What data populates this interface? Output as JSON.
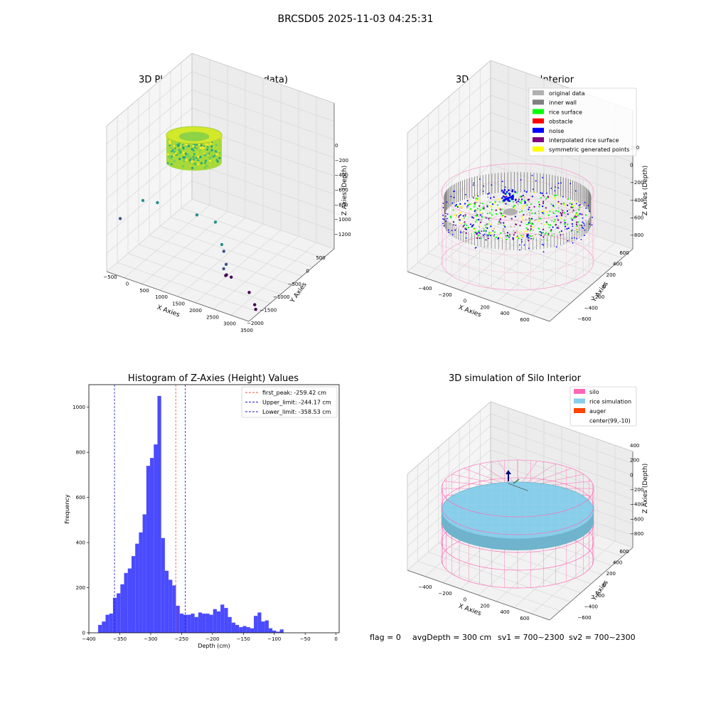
{
  "suptitle": "BRCSD05 2025-11-03 04:25:31",
  "footer": {
    "flag": "flag = 0",
    "avg_depth": "avgDepth = 300 cm",
    "sv1": "sv1 = 700~2300",
    "sv2": "sv2 = 700~2300"
  },
  "colors": {
    "hist_bar": "#4a4aff",
    "first_peak_line": "#e8503c",
    "limit_line": "#1a1ad6",
    "silo": "#ff69b4",
    "rice_simulation": "#87ceeb",
    "auger": "#ff4500",
    "original_data": "#b0b0b0",
    "inner_wall": "#808080",
    "rice_surface": "#00ff00",
    "obstacle": "#ff0000",
    "noise": "#0000ff",
    "interpolated_rice_surface": "#800080",
    "symmetric_generated_points": "#ffff00"
  },
  "chart_data": [
    {
      "type": "scatter",
      "projection": "3d",
      "title": "3D Plot of Silo Interior(row data)",
      "xlabel": "X Axies",
      "ylabel": "Y Axies",
      "zlabel": "Z Axies (Depth)",
      "x_ticks": [
        "−500",
        "0",
        "500",
        "1000",
        "1500",
        "2000",
        "2500",
        "3000",
        "3500"
      ],
      "y_ticks": [
        "500",
        "0",
        "−500",
        "−1000",
        "−1500",
        "−2000"
      ],
      "z_ticks": [
        "0",
        "−200",
        "−400",
        "−600",
        "−800",
        "−1000",
        "−1200"
      ],
      "xlim": [
        -600,
        3500
      ],
      "ylim": [
        -2000,
        700
      ],
      "zlim": [
        -1300,
        50
      ],
      "colormap": "viridis_r",
      "cluster": {
        "center_x": 0,
        "center_y": 0,
        "radius": 600,
        "z_range": [
          -400,
          -150
        ]
      },
      "outliers": [
        {
          "x": 700,
          "y": -200,
          "z": -560
        },
        {
          "x": 300,
          "y": -100,
          "z": -580
        },
        {
          "x": 1800,
          "y": -400,
          "z": -560
        },
        {
          "x": 2300,
          "y": -600,
          "z": -580
        },
        {
          "x": 2500,
          "y": -500,
          "z": -760
        },
        {
          "x": 2550,
          "y": -550,
          "z": -820
        },
        {
          "x": 2600,
          "y": -650,
          "z": -940
        },
        {
          "x": 2500,
          "y": -800,
          "z": -1000
        },
        {
          "x": 2600,
          "y": -700,
          "z": -1040
        },
        {
          "x": 2550,
          "y": -850,
          "z": -1060
        },
        {
          "x": 2700,
          "y": -900,
          "z": -1060
        },
        {
          "x": 3200,
          "y": -1000,
          "z": -1150
        },
        {
          "x": 3350,
          "y": -1050,
          "z": -1250
        },
        {
          "x": 3350,
          "y": -1200,
          "z": -1300
        },
        {
          "x": -300,
          "y": 200,
          "z": -800
        }
      ]
    },
    {
      "type": "scatter",
      "projection": "3d",
      "title": "3D classify of Silo Interior",
      "xlabel": "X Axies",
      "ylabel": "Y Axies",
      "zlabel": "Z Axies (Depth)",
      "x_ticks": [
        "−400",
        "−200",
        "0",
        "200",
        "400",
        "600"
      ],
      "y_ticks": [
        "600",
        "400",
        "200",
        "0",
        "−200",
        "−400",
        "−600"
      ],
      "z_ticks": [
        "200",
        "0",
        "−200",
        "−400",
        "−600",
        "−800"
      ],
      "xlim": [
        -500,
        700
      ],
      "ylim": [
        -700,
        700
      ],
      "zlim": [
        -900,
        300
      ],
      "legend_position": "upper right",
      "legend": [
        {
          "label": "original data",
          "color": "#b0b0b0"
        },
        {
          "label": "inner wall",
          "color": "#808080"
        },
        {
          "label": "rice surface",
          "color": "#00ff00"
        },
        {
          "label": "obstacle",
          "color": "#ff0000"
        },
        {
          "label": "noise",
          "color": "#0000ff"
        },
        {
          "label": "interpolated rice surface",
          "color": "#800080"
        },
        {
          "label": "symmetric generated points",
          "color": "#ffff00"
        }
      ],
      "silo": {
        "center_x": 99,
        "center_y": -10,
        "radius": 600,
        "z_range": [
          -900,
          0
        ]
      },
      "rice_surface_depth_range": [
        -400,
        -200
      ]
    },
    {
      "type": "bar",
      "subtype": "histogram",
      "title": "Histogram of Z-Axies (Height) Values",
      "xlabel": "Depth (cm)",
      "ylabel": "Frequency",
      "xlim": [
        -400,
        5
      ],
      "ylim": [
        0,
        1100
      ],
      "x_ticks": [
        -400,
        -350,
        -300,
        -250,
        -200,
        -150,
        -100,
        -50,
        0
      ],
      "y_ticks": [
        0,
        200,
        400,
        600,
        800,
        1000
      ],
      "bin_start": -385,
      "bin_width": 6,
      "values": [
        35,
        50,
        80,
        85,
        155,
        175,
        215,
        265,
        285,
        340,
        395,
        445,
        525,
        740,
        775,
        835,
        1050,
        420,
        275,
        235,
        210,
        120,
        85,
        80,
        80,
        85,
        70,
        90,
        85,
        85,
        80,
        105,
        95,
        125,
        110,
        70,
        45,
        35,
        25,
        30,
        25,
        20,
        75,
        90,
        50,
        55,
        20,
        10,
        5,
        15
      ],
      "vlines": [
        {
          "label": "first_peak: -259.42 cm",
          "x": -259.42,
          "style": "dashed",
          "color": "#e8503c"
        },
        {
          "label": "Upper_limit: -244.17 cm",
          "x": -244.17,
          "style": "dashed",
          "color": "#1a1ad6"
        },
        {
          "label": "Lower_limit: -358.53 cm",
          "x": -358.53,
          "style": "dashed",
          "color": "#1a1ad6"
        }
      ],
      "legend_position": "upper right"
    },
    {
      "type": "surface",
      "projection": "3d",
      "title": "3D simulation of Silo Interior",
      "xlabel": "X Axies",
      "ylabel": "Y Axies",
      "zlabel": "Z Axies (Depth)",
      "x_ticks": [
        "−400",
        "−200",
        "0",
        "200",
        "400",
        "600"
      ],
      "y_ticks": [
        "600",
        "400",
        "200",
        "0",
        "−200",
        "−400",
        "−600"
      ],
      "z_ticks": [
        "400",
        "200",
        "0",
        "−200",
        "−400",
        "−600",
        "−800"
      ],
      "xlim": [
        -500,
        700
      ],
      "ylim": [
        -700,
        700
      ],
      "zlim": [
        -900,
        450
      ],
      "legend_position": "upper right",
      "legend": [
        {
          "label": "silo",
          "color": "#ff69b4"
        },
        {
          "label": "rice simulation",
          "color": "#87ceeb"
        },
        {
          "label": "auger",
          "color": "#ff4500"
        },
        {
          "label": "center(99,-10)",
          "color": ""
        }
      ],
      "silo": {
        "center_x": 99,
        "center_y": -10,
        "radius": 600,
        "z_range": [
          -900,
          0
        ]
      },
      "rice_level": -300
    }
  ]
}
